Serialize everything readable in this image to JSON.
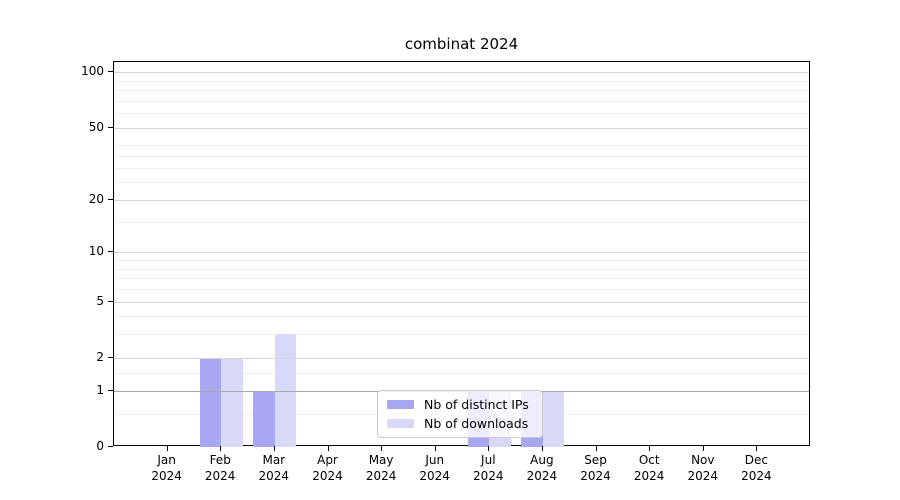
{
  "chart_data": {
    "type": "bar",
    "title": "combinat 2024",
    "year": "2024",
    "categories": [
      "Jan",
      "Feb",
      "Mar",
      "Apr",
      "May",
      "Jun",
      "Jul",
      "Aug",
      "Sep",
      "Oct",
      "Nov",
      "Dec"
    ],
    "series": [
      {
        "name": "Nb of distinct IPs",
        "color": "#a7a7f2",
        "values": [
          0,
          2,
          1,
          0,
          0,
          0,
          1,
          1,
          0,
          0,
          0,
          0
        ]
      },
      {
        "name": "Nb of downloads",
        "color": "#d8d8f8",
        "values": [
          0,
          2,
          3,
          0,
          0,
          0,
          1,
          1,
          0,
          0,
          0,
          0
        ]
      }
    ],
    "xlabel": "",
    "ylabel": "",
    "yscale": "log1p",
    "ylim": [
      0,
      120
    ],
    "yticks": [
      100,
      50,
      20,
      10,
      5,
      2,
      1,
      0
    ],
    "minor_gridlines": [
      0.5,
      1.5,
      3,
      4,
      6,
      7,
      8,
      9,
      15,
      25,
      30,
      35,
      40,
      60,
      70,
      80,
      90
    ],
    "grid": true,
    "legend_position": "lower center",
    "colors": {
      "axis": "#000000",
      "major_grid": "#d6d6d6",
      "minor_grid": "#efefef",
      "baseline_grid": "#a8a8a8",
      "legend_border": "#cccccc"
    }
  }
}
